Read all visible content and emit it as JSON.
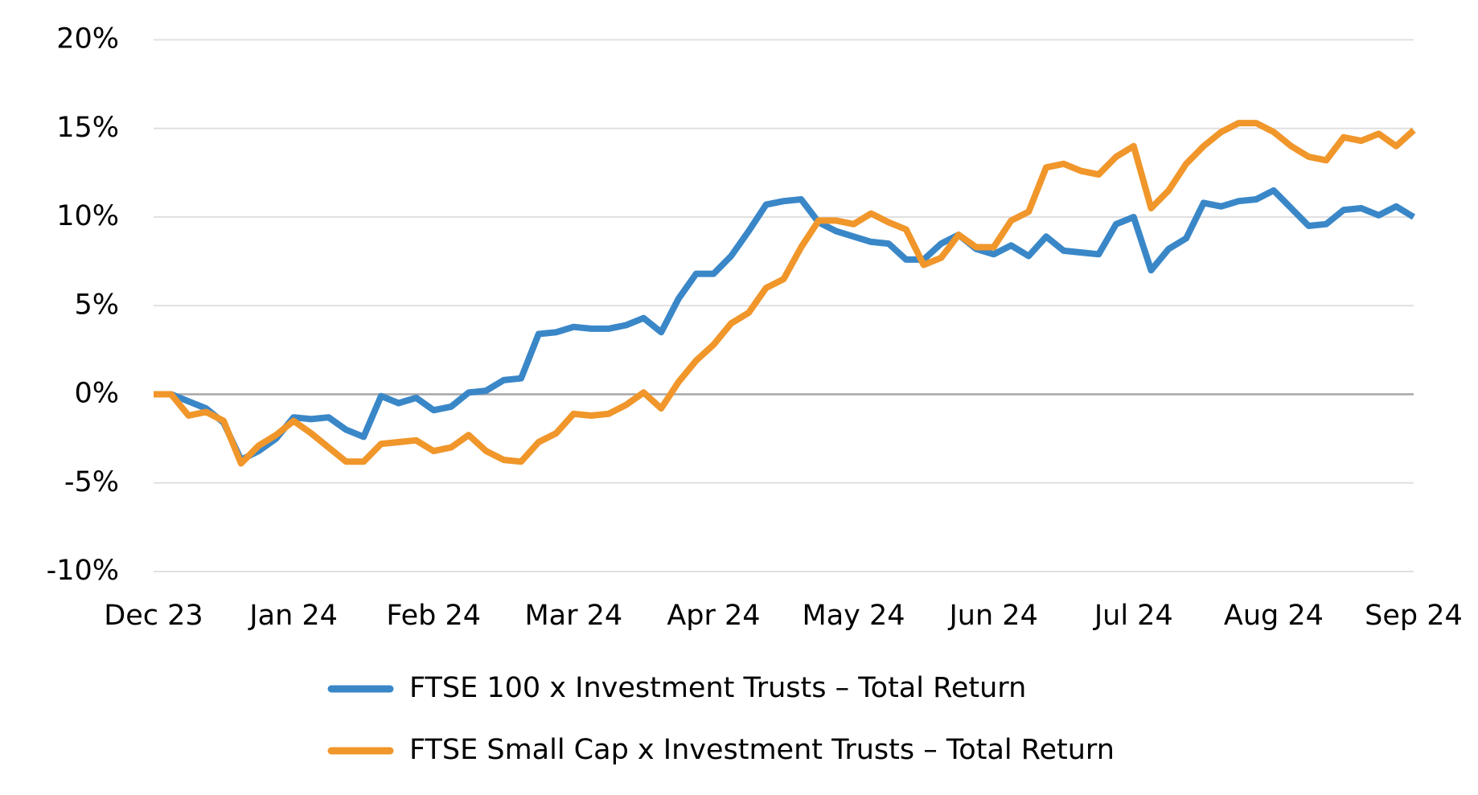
{
  "chart_data": {
    "type": "line",
    "x": [
      0,
      0.125,
      0.25,
      0.375,
      0.5,
      0.625,
      0.75,
      0.875,
      1,
      1.125,
      1.25,
      1.375,
      1.5,
      1.625,
      1.75,
      1.875,
      2,
      2.125,
      2.25,
      2.375,
      2.5,
      2.625,
      2.75,
      2.875,
      3,
      3.125,
      3.25,
      3.375,
      3.5,
      3.625,
      3.75,
      3.875,
      4,
      4.125,
      4.25,
      4.375,
      4.5,
      4.625,
      4.75,
      4.875,
      5,
      5.125,
      5.25,
      5.375,
      5.5,
      5.625,
      5.75,
      5.875,
      6,
      6.125,
      6.25,
      6.375,
      6.5,
      6.625,
      6.75,
      6.875,
      7,
      7.125,
      7.25,
      7.375,
      7.5,
      7.625,
      7.75,
      7.875,
      8,
      8.125,
      8.25,
      8.375,
      8.5,
      8.625,
      8.75,
      8.875,
      9
    ],
    "series": [
      {
        "name": "FTSE 100 x Investment Trusts – Total Return",
        "color": "#3a87c8",
        "values": [
          0,
          0,
          -0.4,
          -0.8,
          -1.6,
          -3.7,
          -3.2,
          -2.5,
          -1.3,
          -1.4,
          -1.3,
          -2.0,
          -2.4,
          -0.1,
          -0.5,
          -0.2,
          -0.9,
          -0.7,
          0.1,
          0.2,
          0.8,
          0.9,
          3.4,
          3.5,
          3.8,
          3.7,
          3.7,
          3.9,
          4.3,
          3.5,
          5.4,
          6.8,
          6.8,
          7.8,
          9.2,
          10.7,
          10.9,
          11.0,
          9.7,
          9.2,
          8.9,
          8.6,
          8.5,
          7.6,
          7.6,
          8.5,
          9.0,
          8.2,
          7.9,
          8.4,
          7.8,
          8.9,
          8.1,
          8.0,
          7.9,
          9.6,
          10.0,
          7.0,
          8.2,
          8.8,
          10.8,
          10.6,
          10.9,
          11.0,
          11.5,
          10.5,
          9.5,
          9.6,
          10.4,
          10.5,
          10.1,
          10.6,
          10.0
        ]
      },
      {
        "name": "FTSE Small Cap x Investment Trusts – Total Return",
        "color": "#f0962a",
        "values": [
          0,
          0,
          -1.2,
          -1.0,
          -1.5,
          -3.9,
          -2.9,
          -2.3,
          -1.5,
          -2.2,
          -3.0,
          -3.8,
          -3.8,
          -2.8,
          -2.7,
          -2.6,
          -3.2,
          -3.0,
          -2.3,
          -3.2,
          -3.7,
          -3.8,
          -2.7,
          -2.2,
          -1.1,
          -1.2,
          -1.1,
          -0.6,
          0.1,
          -0.8,
          0.7,
          1.9,
          2.8,
          4.0,
          4.6,
          6.0,
          6.5,
          8.3,
          9.8,
          9.8,
          9.6,
          10.2,
          9.7,
          9.3,
          7.3,
          7.7,
          9.0,
          8.3,
          8.3,
          9.8,
          10.3,
          12.8,
          13.0,
          12.6,
          12.4,
          13.4,
          14.0,
          10.5,
          11.5,
          13.0,
          14.0,
          14.8,
          15.3,
          15.3,
          14.8,
          14.0,
          13.4,
          13.2,
          14.5,
          14.3,
          14.7,
          14.0,
          14.9
        ]
      }
    ],
    "xlim": [
      0,
      9
    ],
    "xticks": [
      {
        "value": 0,
        "label": "Dec 23"
      },
      {
        "value": 1,
        "label": "Jan 24"
      },
      {
        "value": 2,
        "label": "Feb 24"
      },
      {
        "value": 3,
        "label": "Mar 24"
      },
      {
        "value": 4,
        "label": "Apr 24"
      },
      {
        "value": 5,
        "label": "May 24"
      },
      {
        "value": 6,
        "label": "Jun 24"
      },
      {
        "value": 7,
        "label": "Jul 24"
      },
      {
        "value": 8,
        "label": "Aug 24"
      },
      {
        "value": 9,
        "label": "Sep 24"
      }
    ],
    "ylim": [
      -10,
      20
    ],
    "yticks": [
      {
        "value": -10,
        "label": "-10%"
      },
      {
        "value": -5,
        "label": "-5%"
      },
      {
        "value": 0,
        "label": "0%"
      },
      {
        "value": 5,
        "label": "5%"
      },
      {
        "value": 10,
        "label": "10%"
      },
      {
        "value": 15,
        "label": "15%"
      },
      {
        "value": 20,
        "label": "20%"
      }
    ],
    "grid": true,
    "legend": "bottom"
  }
}
